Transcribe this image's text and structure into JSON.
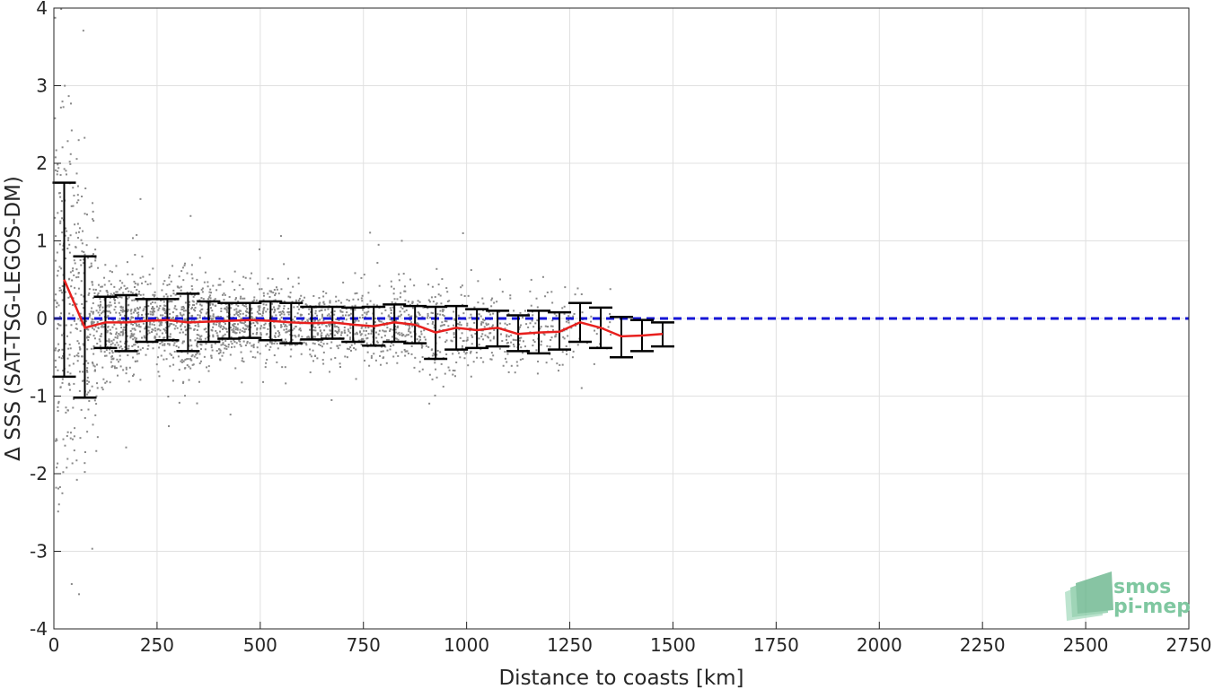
{
  "chart_data": {
    "type": "scatter",
    "xlabel": "Distance to coasts [km]",
    "ylabel": "Δ SSS (SAT-TSG-LEGOS-DM)",
    "xlim": [
      0,
      2750
    ],
    "ylim": [
      -4,
      4
    ],
    "x_ticks": [
      "0",
      "250",
      "500",
      "750",
      "1000",
      "1250",
      "1500",
      "1750",
      "2000",
      "2250",
      "2500",
      "2750"
    ],
    "y_ticks": [
      "-4",
      "-3",
      "-2",
      "-1",
      "0",
      "1",
      "2",
      "3",
      "4"
    ],
    "grid": true,
    "colors": {
      "scatter": "#8a8a8a",
      "mean_line": "#e8201e",
      "error_bars": "#000000",
      "zero_line": "#1515d6"
    },
    "zero_line": {
      "y": 0,
      "style": "dashed"
    },
    "scatter_range_x": [
      0,
      1500
    ],
    "binned": {
      "x": [
        25,
        75,
        125,
        175,
        225,
        275,
        325,
        375,
        425,
        475,
        525,
        575,
        625,
        675,
        725,
        775,
        825,
        875,
        925,
        975,
        1025,
        1075,
        1125,
        1175,
        1225,
        1275,
        1325,
        1375,
        1425,
        1475
      ],
      "mean": [
        0.5,
        -0.12,
        -0.05,
        -0.05,
        -0.03,
        -0.02,
        -0.05,
        -0.04,
        -0.03,
        -0.02,
        -0.03,
        -0.05,
        -0.06,
        -0.05,
        -0.08,
        -0.1,
        -0.05,
        -0.08,
        -0.18,
        -0.12,
        -0.15,
        -0.12,
        -0.2,
        -0.18,
        -0.17,
        -0.05,
        -0.12,
        -0.23,
        -0.22,
        -0.2
      ],
      "upper": [
        1.75,
        0.8,
        0.28,
        0.3,
        0.25,
        0.25,
        0.32,
        0.22,
        0.2,
        0.2,
        0.22,
        0.2,
        0.15,
        0.15,
        0.14,
        0.15,
        0.18,
        0.16,
        0.15,
        0.16,
        0.12,
        0.1,
        0.04,
        0.1,
        0.08,
        0.2,
        0.14,
        0.02,
        -0.02,
        -0.05
      ],
      "lower": [
        -0.75,
        -1.02,
        -0.38,
        -0.42,
        -0.3,
        -0.28,
        -0.42,
        -0.3,
        -0.26,
        -0.25,
        -0.28,
        -0.32,
        -0.27,
        -0.26,
        -0.3,
        -0.35,
        -0.3,
        -0.32,
        -0.52,
        -0.4,
        -0.38,
        -0.36,
        -0.42,
        -0.45,
        -0.4,
        -0.3,
        -0.38,
        -0.5,
        -0.42,
        -0.36
      ]
    },
    "logo": {
      "line1": "smos",
      "line2": "pi-mep"
    }
  }
}
